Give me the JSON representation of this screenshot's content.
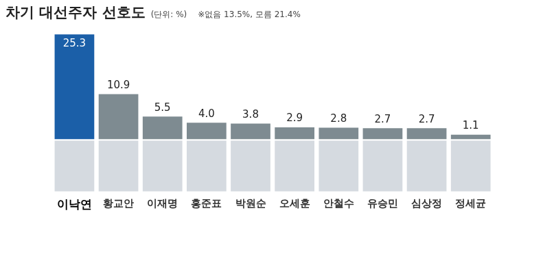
{
  "chart_data": {
    "type": "bar",
    "title": "차기 대선주자 선호도",
    "subtitle": "(단위: %)",
    "annotations": [
      "※없음 13.5%, 모름 21.4%"
    ],
    "categories": [
      "이낙연",
      "황교안",
      "이재명",
      "홍준표",
      "박원순",
      "오세훈",
      "안철수",
      "유승민",
      "심상정",
      "정세균"
    ],
    "values": [
      25.3,
      10.9,
      5.5,
      4.0,
      3.8,
      2.9,
      2.8,
      2.7,
      2.7,
      1.1
    ],
    "value_labels": [
      "25.3",
      "10.9",
      "5.5",
      "4.0",
      "3.8",
      "2.9",
      "2.8",
      "2.7",
      "2.7",
      "1.1"
    ],
    "colors": [
      "#1b5fa8",
      "#7e8b91",
      "#7e8b91",
      "#7e8b91",
      "#7e8b91",
      "#7e8b91",
      "#7e8b91",
      "#7e8b91",
      "#7e8b91",
      "#7e8b91"
    ],
    "ylim": [
      0,
      27
    ],
    "grid": false,
    "data_labels": true,
    "tick_labels": "x"
  }
}
